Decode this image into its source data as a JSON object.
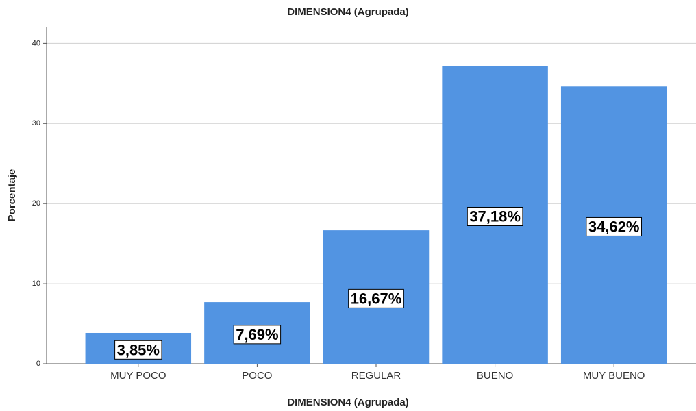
{
  "chart_data": {
    "type": "bar",
    "title": "DIMENSION4 (Agrupada)",
    "x_label": "DIMENSION4 (Agrupada)",
    "y_label": "Porcentaje",
    "categories": [
      "MUY POCO",
      "POCO",
      "REGULAR",
      "BUENO",
      "MUY BUENO"
    ],
    "values": [
      3.85,
      7.69,
      16.67,
      37.18,
      34.62
    ],
    "value_labels": [
      "3,85%",
      "7,69%",
      "16,67%",
      "37,18%",
      "34,62%"
    ],
    "color": "#5294e2",
    "ylim": [
      0,
      42
    ],
    "yticks": [
      0,
      10,
      20,
      30,
      40
    ],
    "grid": true
  }
}
